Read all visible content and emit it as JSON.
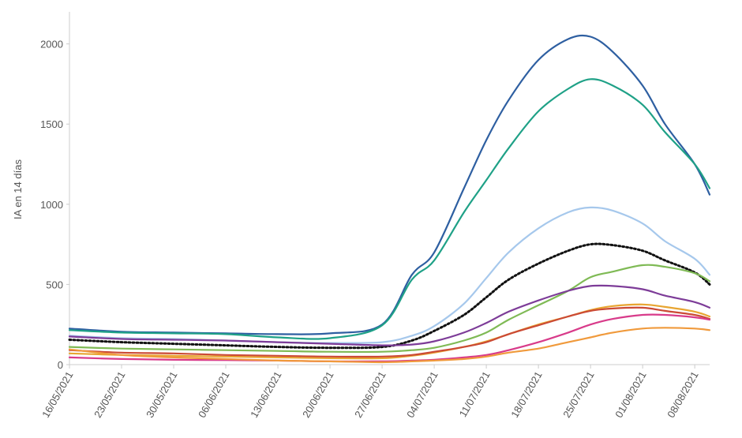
{
  "chart_data": {
    "type": "line",
    "title": "",
    "xlabel": "",
    "ylabel": "IA en 14 días",
    "ylim": [
      0,
      2200
    ],
    "yticks": [
      0,
      500,
      1000,
      1500,
      2000
    ],
    "x_dates": [
      "16/05/2021",
      "23/05/2021",
      "30/05/2021",
      "06/06/2021",
      "13/06/2021",
      "20/06/2021",
      "27/06/2021",
      "04/07/2021",
      "11/07/2021",
      "18/07/2021",
      "25/07/2021",
      "01/08/2021",
      "08/08/2021"
    ],
    "x_start": "16/05/2021",
    "x_end": "10/08/2021",
    "grid": false,
    "legend": "none",
    "series": [
      {
        "color": "#2e5fa1",
        "style": "solid",
        "points": [
          [
            "16/05/2021",
            225
          ],
          [
            "23/05/2021",
            205
          ],
          [
            "30/05/2021",
            200
          ],
          [
            "06/06/2021",
            195
          ],
          [
            "13/06/2021",
            190
          ],
          [
            "20/06/2021",
            195
          ],
          [
            "27/06/2021",
            250
          ],
          [
            "01/07/2021",
            560
          ],
          [
            "04/07/2021",
            700
          ],
          [
            "08/07/2021",
            1100
          ],
          [
            "11/07/2021",
            1400
          ],
          [
            "14/07/2021",
            1650
          ],
          [
            "18/07/2021",
            1900
          ],
          [
            "22/07/2021",
            2030
          ],
          [
            "25/07/2021",
            2045
          ],
          [
            "28/07/2021",
            1950
          ],
          [
            "01/08/2021",
            1740
          ],
          [
            "04/08/2021",
            1500
          ],
          [
            "08/08/2021",
            1250
          ],
          [
            "10/08/2021",
            1060
          ]
        ]
      },
      {
        "color": "#1fa187",
        "style": "solid",
        "points": [
          [
            "16/05/2021",
            215
          ],
          [
            "23/05/2021",
            200
          ],
          [
            "30/05/2021",
            195
          ],
          [
            "06/06/2021",
            190
          ],
          [
            "13/06/2021",
            170
          ],
          [
            "20/06/2021",
            165
          ],
          [
            "27/06/2021",
            245
          ],
          [
            "01/07/2021",
            530
          ],
          [
            "04/07/2021",
            650
          ],
          [
            "08/07/2021",
            950
          ],
          [
            "11/07/2021",
            1150
          ],
          [
            "14/07/2021",
            1350
          ],
          [
            "18/07/2021",
            1580
          ],
          [
            "22/07/2021",
            1720
          ],
          [
            "25/07/2021",
            1780
          ],
          [
            "28/07/2021",
            1740
          ],
          [
            "01/08/2021",
            1620
          ],
          [
            "04/08/2021",
            1450
          ],
          [
            "08/08/2021",
            1250
          ],
          [
            "10/08/2021",
            1100
          ]
        ]
      },
      {
        "color": "#a6c8ec",
        "style": "solid",
        "points": [
          [
            "16/05/2021",
            180
          ],
          [
            "23/05/2021",
            165
          ],
          [
            "30/05/2021",
            160
          ],
          [
            "06/06/2021",
            150
          ],
          [
            "13/06/2021",
            140
          ],
          [
            "20/06/2021",
            135
          ],
          [
            "27/06/2021",
            140
          ],
          [
            "01/07/2021",
            180
          ],
          [
            "04/07/2021",
            240
          ],
          [
            "08/07/2021",
            380
          ],
          [
            "11/07/2021",
            540
          ],
          [
            "14/07/2021",
            700
          ],
          [
            "18/07/2021",
            850
          ],
          [
            "22/07/2021",
            950
          ],
          [
            "25/07/2021",
            980
          ],
          [
            "28/07/2021",
            960
          ],
          [
            "01/08/2021",
            880
          ],
          [
            "04/08/2021",
            770
          ],
          [
            "08/08/2021",
            660
          ],
          [
            "10/08/2021",
            560
          ]
        ]
      },
      {
        "color": "#111111",
        "style": "dotted",
        "points": [
          [
            "16/05/2021",
            155
          ],
          [
            "23/05/2021",
            140
          ],
          [
            "30/05/2021",
            130
          ],
          [
            "06/06/2021",
            120
          ],
          [
            "13/06/2021",
            110
          ],
          [
            "20/06/2021",
            105
          ],
          [
            "27/06/2021",
            110
          ],
          [
            "01/07/2021",
            150
          ],
          [
            "04/07/2021",
            210
          ],
          [
            "08/07/2021",
            310
          ],
          [
            "11/07/2021",
            420
          ],
          [
            "14/07/2021",
            530
          ],
          [
            "18/07/2021",
            630
          ],
          [
            "22/07/2021",
            710
          ],
          [
            "25/07/2021",
            750
          ],
          [
            "28/07/2021",
            745
          ],
          [
            "01/08/2021",
            710
          ],
          [
            "04/08/2021",
            650
          ],
          [
            "08/08/2021",
            575
          ],
          [
            "10/08/2021",
            500
          ]
        ]
      },
      {
        "color": "#7fba55",
        "style": "solid",
        "points": [
          [
            "16/05/2021",
            110
          ],
          [
            "23/05/2021",
            100
          ],
          [
            "30/05/2021",
            95
          ],
          [
            "06/06/2021",
            90
          ],
          [
            "13/06/2021",
            85
          ],
          [
            "20/06/2021",
            80
          ],
          [
            "27/06/2021",
            80
          ],
          [
            "01/07/2021",
            90
          ],
          [
            "04/07/2021",
            105
          ],
          [
            "08/07/2021",
            150
          ],
          [
            "11/07/2021",
            200
          ],
          [
            "14/07/2021",
            280
          ],
          [
            "18/07/2021",
            370
          ],
          [
            "22/07/2021",
            460
          ],
          [
            "25/07/2021",
            545
          ],
          [
            "28/07/2021",
            580
          ],
          [
            "01/08/2021",
            620
          ],
          [
            "04/08/2021",
            610
          ],
          [
            "08/08/2021",
            570
          ],
          [
            "10/08/2021",
            520
          ]
        ]
      },
      {
        "color": "#7d3c98",
        "style": "solid",
        "points": [
          [
            "16/05/2021",
            175
          ],
          [
            "23/05/2021",
            160
          ],
          [
            "30/05/2021",
            155
          ],
          [
            "06/06/2021",
            150
          ],
          [
            "13/06/2021",
            140
          ],
          [
            "20/06/2021",
            130
          ],
          [
            "27/06/2021",
            120
          ],
          [
            "01/07/2021",
            125
          ],
          [
            "04/07/2021",
            145
          ],
          [
            "08/07/2021",
            200
          ],
          [
            "11/07/2021",
            260
          ],
          [
            "14/07/2021",
            330
          ],
          [
            "18/07/2021",
            400
          ],
          [
            "22/07/2021",
            460
          ],
          [
            "25/07/2021",
            490
          ],
          [
            "28/07/2021",
            490
          ],
          [
            "01/08/2021",
            470
          ],
          [
            "04/08/2021",
            430
          ],
          [
            "08/08/2021",
            390
          ],
          [
            "10/08/2021",
            355
          ]
        ]
      },
      {
        "color": "#e8a531",
        "style": "solid",
        "points": [
          [
            "16/05/2021",
            70
          ],
          [
            "23/05/2021",
            60
          ],
          [
            "30/05/2021",
            55
          ],
          [
            "06/06/2021",
            50
          ],
          [
            "13/06/2021",
            45
          ],
          [
            "20/06/2021",
            40
          ],
          [
            "27/06/2021",
            40
          ],
          [
            "01/07/2021",
            55
          ],
          [
            "04/07/2021",
            75
          ],
          [
            "08/07/2021",
            110
          ],
          [
            "11/07/2021",
            145
          ],
          [
            "14/07/2021",
            190
          ],
          [
            "18/07/2021",
            250
          ],
          [
            "22/07/2021",
            300
          ],
          [
            "25/07/2021",
            340
          ],
          [
            "28/07/2021",
            365
          ],
          [
            "01/08/2021",
            375
          ],
          [
            "04/08/2021",
            360
          ],
          [
            "08/08/2021",
            330
          ],
          [
            "10/08/2021",
            300
          ]
        ]
      },
      {
        "color": "#cb4a35",
        "style": "solid",
        "points": [
          [
            "16/05/2021",
            90
          ],
          [
            "23/05/2021",
            75
          ],
          [
            "30/05/2021",
            70
          ],
          [
            "06/06/2021",
            60
          ],
          [
            "13/06/2021",
            55
          ],
          [
            "20/06/2021",
            50
          ],
          [
            "27/06/2021",
            50
          ],
          [
            "01/07/2021",
            60
          ],
          [
            "04/07/2021",
            80
          ],
          [
            "08/07/2021",
            110
          ],
          [
            "11/07/2021",
            140
          ],
          [
            "14/07/2021",
            190
          ],
          [
            "18/07/2021",
            245
          ],
          [
            "22/07/2021",
            300
          ],
          [
            "25/07/2021",
            335
          ],
          [
            "28/07/2021",
            350
          ],
          [
            "01/08/2021",
            355
          ],
          [
            "04/08/2021",
            335
          ],
          [
            "08/08/2021",
            310
          ],
          [
            "10/08/2021",
            285
          ]
        ]
      },
      {
        "color": "#d83b8a",
        "style": "solid",
        "points": [
          [
            "16/05/2021",
            45
          ],
          [
            "23/05/2021",
            35
          ],
          [
            "30/05/2021",
            30
          ],
          [
            "06/06/2021",
            28
          ],
          [
            "13/06/2021",
            25
          ],
          [
            "20/06/2021",
            20
          ],
          [
            "27/06/2021",
            20
          ],
          [
            "01/07/2021",
            25
          ],
          [
            "04/07/2021",
            30
          ],
          [
            "08/07/2021",
            45
          ],
          [
            "11/07/2021",
            60
          ],
          [
            "14/07/2021",
            90
          ],
          [
            "18/07/2021",
            140
          ],
          [
            "22/07/2021",
            200
          ],
          [
            "25/07/2021",
            250
          ],
          [
            "28/07/2021",
            285
          ],
          [
            "01/08/2021",
            310
          ],
          [
            "04/08/2021",
            310
          ],
          [
            "08/08/2021",
            295
          ],
          [
            "10/08/2021",
            280
          ]
        ]
      },
      {
        "color": "#f09a3c",
        "style": "solid",
        "points": [
          [
            "16/05/2021",
            95
          ],
          [
            "23/05/2021",
            60
          ],
          [
            "30/05/2021",
            45
          ],
          [
            "06/06/2021",
            35
          ],
          [
            "13/06/2021",
            25
          ],
          [
            "20/06/2021",
            20
          ],
          [
            "27/06/2021",
            15
          ],
          [
            "01/07/2021",
            20
          ],
          [
            "04/07/2021",
            25
          ],
          [
            "08/07/2021",
            35
          ],
          [
            "11/07/2021",
            50
          ],
          [
            "14/07/2021",
            75
          ],
          [
            "18/07/2021",
            100
          ],
          [
            "22/07/2021",
            140
          ],
          [
            "25/07/2021",
            170
          ],
          [
            "28/07/2021",
            200
          ],
          [
            "01/08/2021",
            225
          ],
          [
            "04/08/2021",
            230
          ],
          [
            "08/08/2021",
            225
          ],
          [
            "10/08/2021",
            215
          ]
        ]
      }
    ]
  }
}
